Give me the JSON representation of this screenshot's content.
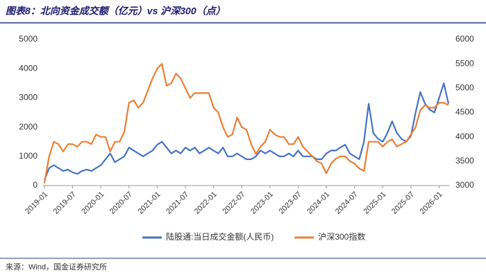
{
  "title": "图表8：北向资金成交额（亿元）vs 沪深300（点）",
  "source": "来源：Wind，国金证券研究所",
  "chart_data": {
    "type": "line",
    "x": [
      "2019-01",
      "2019-02",
      "2019-03",
      "2019-04",
      "2019-05",
      "2019-06",
      "2019-07",
      "2019-08",
      "2019-09",
      "2019-10",
      "2019-11",
      "2019-12",
      "2020-01",
      "2020-02",
      "2020-03",
      "2020-04",
      "2020-05",
      "2020-06",
      "2020-07",
      "2020-08",
      "2020-09",
      "2020-10",
      "2020-11",
      "2020-12",
      "2021-01",
      "2021-02",
      "2021-03",
      "2021-04",
      "2021-05",
      "2021-06",
      "2021-07",
      "2021-08",
      "2021-09",
      "2021-10",
      "2021-11",
      "2021-12",
      "2022-01",
      "2022-02",
      "2022-03",
      "2022-04",
      "2022-05",
      "2022-06",
      "2022-07",
      "2022-08",
      "2022-09",
      "2022-10",
      "2022-11",
      "2022-12",
      "2023-01",
      "2023-02",
      "2023-03",
      "2023-04",
      "2023-05",
      "2023-06",
      "2023-07",
      "2023-08",
      "2023-09",
      "2023-10",
      "2023-11",
      "2023-12",
      "2024-01",
      "2024-02",
      "2024-03",
      "2024-04",
      "2024-05",
      "2024-06",
      "2024-07",
      "2024-08",
      "2024-09",
      "2024-10",
      "2024-11",
      "2024-12",
      "2025-01",
      "2025-02",
      "2025-03",
      "2025-04",
      "2025-05",
      "2025-06",
      "2025-07",
      "2025-08",
      "2025-09",
      "2025-10",
      "2025-11",
      "2025-12",
      "2026-01",
      "2026-02",
      "2026-03"
    ],
    "xticks": [
      "2019-01",
      "2019-07",
      "2020-01",
      "2020-07",
      "2021-01",
      "2021-07",
      "2022-01",
      "2022-07",
      "2023-01",
      "2023-07",
      "2024-01",
      "2024-07",
      "2025-01",
      "2025-07",
      "2026-01"
    ],
    "ylim": [
      0,
      5000
    ],
    "yticks": [
      0,
      1000,
      2000,
      3000,
      4000,
      5000
    ],
    "y2lim": [
      3000,
      6000
    ],
    "y2ticks": [
      3000,
      3500,
      4000,
      4500,
      5000,
      5500,
      6000
    ],
    "series": [
      {
        "name": "陆股通:当日成交金额(人民币)",
        "color": "#4472c4",
        "values": [
          200,
          600,
          700,
          600,
          500,
          550,
          450,
          400,
          500,
          550,
          500,
          600,
          700,
          900,
          1100,
          800,
          900,
          1000,
          1300,
          1200,
          1100,
          1000,
          1100,
          1200,
          1400,
          1500,
          1300,
          1100,
          1200,
          1100,
          1300,
          1200,
          1300,
          1100,
          1200,
          1300,
          1200,
          1100,
          1300,
          1000,
          1000,
          1100,
          1000,
          900,
          900,
          1000,
          1200,
          1100,
          1200,
          1100,
          1000,
          1000,
          1100,
          1000,
          1200,
          1000,
          1000,
          1000,
          900,
          900,
          1100,
          1200,
          1200,
          1300,
          1400,
          1100,
          1000,
          900,
          1500,
          2800,
          1800,
          1600,
          1500,
          1800,
          2200,
          1800,
          1600,
          1500,
          1700,
          2500,
          3200,
          2800,
          2600,
          2500,
          3000,
          3500,
          2800
        ]
      },
      {
        "name": "沪深300指数",
        "color": "#ed7d31",
        "axis": "y2",
        "values": [
          3050,
          3600,
          3900,
          3850,
          3700,
          3850,
          3850,
          3800,
          3900,
          3900,
          3850,
          4050,
          4000,
          4000,
          3700,
          3900,
          3900,
          4100,
          4700,
          4750,
          4600,
          4700,
          4950,
          5200,
          5400,
          5500,
          5050,
          5100,
          5300,
          5200,
          5000,
          4800,
          4900,
          4900,
          4900,
          4900,
          4600,
          4500,
          4200,
          4000,
          4050,
          4400,
          4200,
          4150,
          3850,
          3650,
          3800,
          3900,
          4150,
          4050,
          4000,
          4000,
          3850,
          3850,
          4000,
          3800,
          3700,
          3600,
          3500,
          3450,
          3250,
          3450,
          3550,
          3600,
          3600,
          3500,
          3450,
          3350,
          3300,
          3900,
          3900,
          3900,
          3800,
          3900,
          3950,
          3800,
          3850,
          3900,
          4050,
          4200,
          4550,
          4650,
          4600,
          4600,
          4700,
          4700,
          4650
        ]
      }
    ],
    "grid": false,
    "legend": "bottom"
  }
}
